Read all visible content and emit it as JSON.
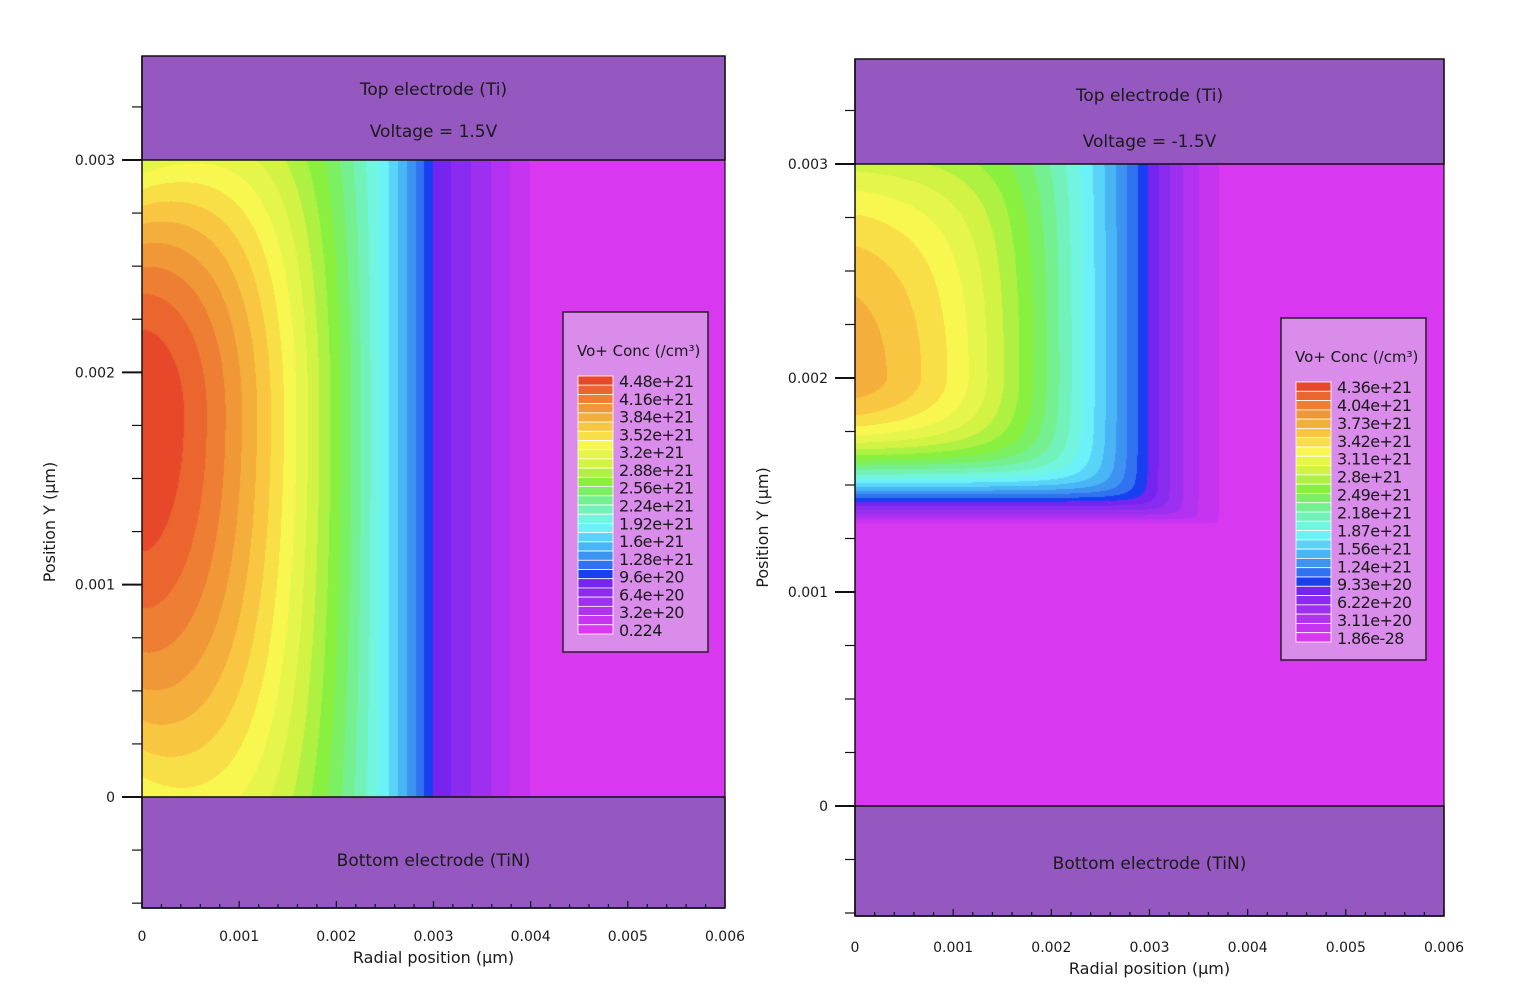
{
  "chart_data": [
    {
      "type": "heatmap",
      "style": "filled-contour",
      "xlabel": "Radial position (µm)",
      "ylabel": "Position Y (µm)",
      "xlim": [
        0,
        0.006
      ],
      "ylim": [
        -0.00052,
        0.00349
      ],
      "xticks": [
        "0",
        "0.001",
        "0.002",
        "0.003",
        "0.004",
        "0.005",
        "0.006"
      ],
      "xtick_values": [
        0,
        0.001,
        0.002,
        0.003,
        0.004,
        0.005,
        0.006
      ],
      "yticks": [
        "0",
        "0.001",
        "0.002",
        "0.003"
      ],
      "ytick_values": [
        0,
        0.001,
        0.002,
        0.003
      ],
      "grid": false,
      "top_region": {
        "label": "Top electrode (Ti)",
        "annotation": "Voltage = 1.5V",
        "y_range": [
          0.003,
          0.00349
        ],
        "color": "#9558c0"
      },
      "bottom_region": {
        "label": "Bottom electrode (TiN)",
        "y_range": [
          -0.00052,
          0
        ],
        "color": "#9558c0"
      },
      "colorbar": {
        "title": "Vo+ Conc (/cm³)",
        "placement": "right",
        "labels": [
          "4.48e+21",
          "4.16e+21",
          "3.84e+21",
          "3.52e+21",
          "3.2e+21",
          "2.88e+21",
          "2.56e+21",
          "2.24e+21",
          "1.92e+21",
          "1.6e+21",
          "1.28e+21",
          "9.6e+20",
          "6.4e+20",
          "3.2e+20",
          "0.224"
        ],
        "min": 0.224,
        "max": 4.48e+21
      },
      "field_summary": {
        "peak_r": 0,
        "peak_y": 0.0018,
        "peak_value": 4.48e+21,
        "blue_front_r": 0.003,
        "zero_beyond_r": 0.0042
      }
    },
    {
      "type": "heatmap",
      "style": "filled-contour",
      "xlabel": "Radial position (µm)",
      "ylabel": "Position Y (µm)",
      "xlim": [
        0,
        0.006
      ],
      "ylim": [
        -0.00051,
        0.00349
      ],
      "xticks": [
        "0",
        "0.001",
        "0.002",
        "0.003",
        "0.004",
        "0.005",
        "0.006"
      ],
      "xtick_values": [
        0,
        0.001,
        0.002,
        0.003,
        0.004,
        0.005,
        0.006
      ],
      "yticks": [
        "0",
        "0.001",
        "0.002",
        "0.003"
      ],
      "ytick_values": [
        0,
        0.001,
        0.002,
        0.003
      ],
      "grid": false,
      "top_region": {
        "label": "Top electrode (Ti)",
        "annotation": "Voltage = -1.5V",
        "y_range": [
          0.003,
          0.00349
        ],
        "color": "#9558c0"
      },
      "bottom_region": {
        "label": "Bottom electrode (TiN)",
        "y_range": [
          -0.00051,
          0
        ],
        "color": "#9558c0"
      },
      "colorbar": {
        "title": "Vo+ Conc (/cm³)",
        "placement": "right",
        "labels": [
          "4.36e+21",
          "4.04e+21",
          "3.73e+21",
          "3.42e+21",
          "3.11e+21",
          "2.8e+21",
          "2.49e+21",
          "2.18e+21",
          "1.87e+21",
          "1.56e+21",
          "1.24e+21",
          "9.33e+20",
          "6.22e+20",
          "3.11e+20",
          "1.86e-28"
        ],
        "min": 1.86e-28,
        "max": 4.36e+21
      },
      "field_summary": {
        "peak_r": 0,
        "peak_y": 0.002,
        "peak_value": 4.36e+21,
        "blue_front_r": 0.003,
        "blue_front_y": 0.00142
      }
    }
  ],
  "colormap": [
    [
      0.0,
      "#e13cf0"
    ],
    [
      0.07,
      "#bf32f0"
    ],
    [
      0.14,
      "#9430f0"
    ],
    [
      0.2,
      "#7424f0"
    ],
    [
      0.215,
      "#0a1ef0"
    ],
    [
      0.25,
      "#2a62f0"
    ],
    [
      0.3,
      "#3c90f0"
    ],
    [
      0.36,
      "#50c8f8"
    ],
    [
      0.42,
      "#72f8f8"
    ],
    [
      0.5,
      "#72f0a8"
    ],
    [
      0.58,
      "#80f040"
    ],
    [
      0.66,
      "#d2f244"
    ],
    [
      0.73,
      "#f8f850"
    ],
    [
      0.8,
      "#f8c840"
    ],
    [
      0.87,
      "#f09a38"
    ],
    [
      0.94,
      "#ec6a30"
    ],
    [
      1.0,
      "#e63a28"
    ]
  ],
  "colors": {
    "electrode": "#9558c0",
    "legend_bg": "#d98cea",
    "axis": "#111111"
  }
}
